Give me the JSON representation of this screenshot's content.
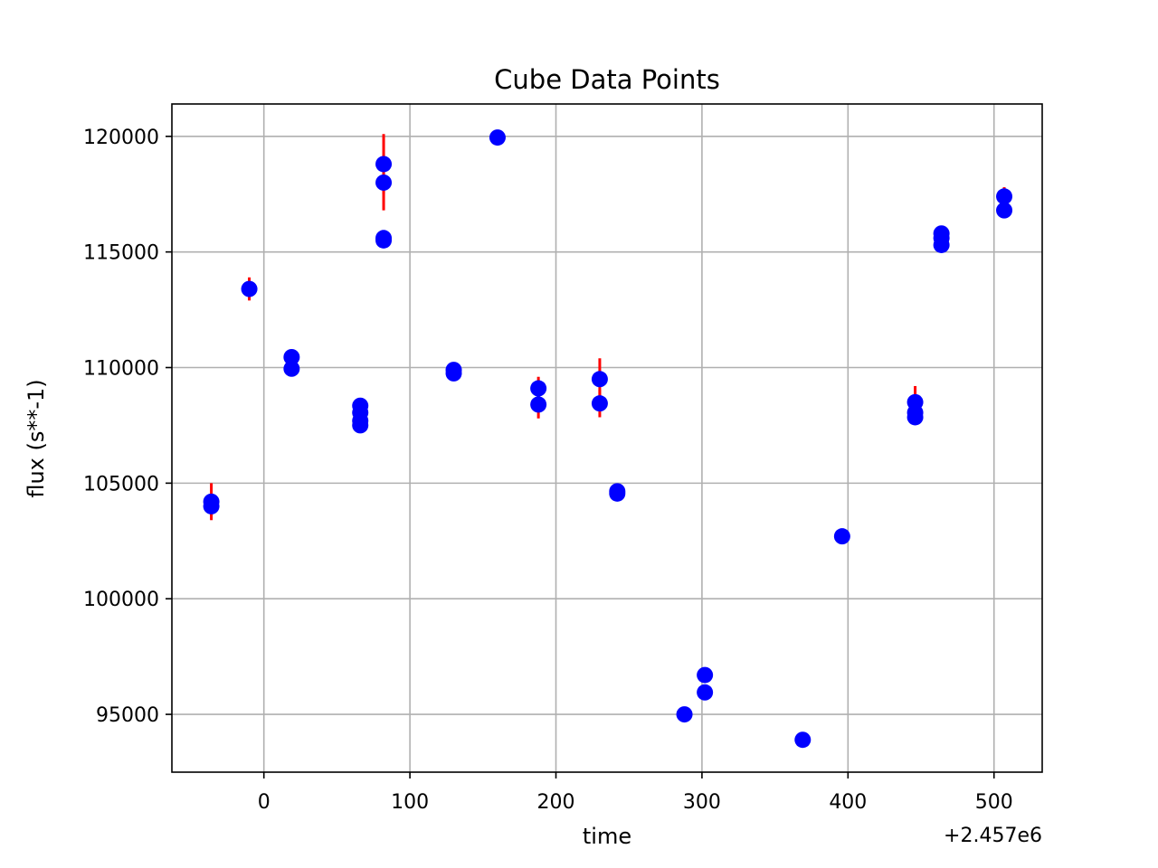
{
  "chart_data": {
    "type": "scatter",
    "title": "Cube Data Points",
    "xlabel": "time",
    "ylabel": "flux (s**-1)",
    "x_offset_label": "+2.457e6",
    "xlim": [
      -63,
      533
    ],
    "ylim": [
      92500,
      121400
    ],
    "xticks": [
      0,
      100,
      200,
      300,
      400,
      500
    ],
    "xtick_labels": [
      "0",
      "100",
      "200",
      "300",
      "400",
      "500"
    ],
    "yticks": [
      95000,
      100000,
      105000,
      110000,
      115000,
      120000
    ],
    "ytick_labels": [
      "95000",
      "100000",
      "105000",
      "110000",
      "115000",
      "120000"
    ],
    "grid": true,
    "marker_color": "#0000ff",
    "errorbar_color": "#ff0000",
    "points": [
      {
        "x": -36,
        "y": 104200,
        "err": 800
      },
      {
        "x": -36,
        "y": 104000,
        "err": 400
      },
      {
        "x": -10,
        "y": 113400,
        "err": 500
      },
      {
        "x": 19,
        "y": 110450,
        "err": 200
      },
      {
        "x": 19,
        "y": 109950,
        "err": 200
      },
      {
        "x": 66,
        "y": 108350,
        "err": 200
      },
      {
        "x": 66,
        "y": 108050,
        "err": 200
      },
      {
        "x": 66,
        "y": 107700,
        "err": 200
      },
      {
        "x": 66,
        "y": 107500,
        "err": 200
      },
      {
        "x": 82,
        "y": 118800,
        "err": 1300
      },
      {
        "x": 82,
        "y": 118000,
        "err": 1200
      },
      {
        "x": 82,
        "y": 115600,
        "err": 200
      },
      {
        "x": 82,
        "y": 115500,
        "err": 200
      },
      {
        "x": 130,
        "y": 109900,
        "err": 200
      },
      {
        "x": 130,
        "y": 109750,
        "err": 200
      },
      {
        "x": 160,
        "y": 119950,
        "err": 200
      },
      {
        "x": 188,
        "y": 109100,
        "err": 500
      },
      {
        "x": 188,
        "y": 108400,
        "err": 600
      },
      {
        "x": 230,
        "y": 109500,
        "err": 900
      },
      {
        "x": 230,
        "y": 108450,
        "err": 600
      },
      {
        "x": 242,
        "y": 104650,
        "err": 200
      },
      {
        "x": 242,
        "y": 104550,
        "err": 200
      },
      {
        "x": 288,
        "y": 95000,
        "err": 200
      },
      {
        "x": 302,
        "y": 96700,
        "err": 200
      },
      {
        "x": 302,
        "y": 95950,
        "err": 200
      },
      {
        "x": 369,
        "y": 93900,
        "err": 200
      },
      {
        "x": 396,
        "y": 102700,
        "err": 200
      },
      {
        "x": 446,
        "y": 108500,
        "err": 700
      },
      {
        "x": 446,
        "y": 108050,
        "err": 200
      },
      {
        "x": 446,
        "y": 107850,
        "err": 200
      },
      {
        "x": 464,
        "y": 115800,
        "err": 200
      },
      {
        "x": 464,
        "y": 115600,
        "err": 200
      },
      {
        "x": 464,
        "y": 115300,
        "err": 200
      },
      {
        "x": 507,
        "y": 117400,
        "err": 400
      },
      {
        "x": 507,
        "y": 116800,
        "err": 200
      }
    ]
  }
}
